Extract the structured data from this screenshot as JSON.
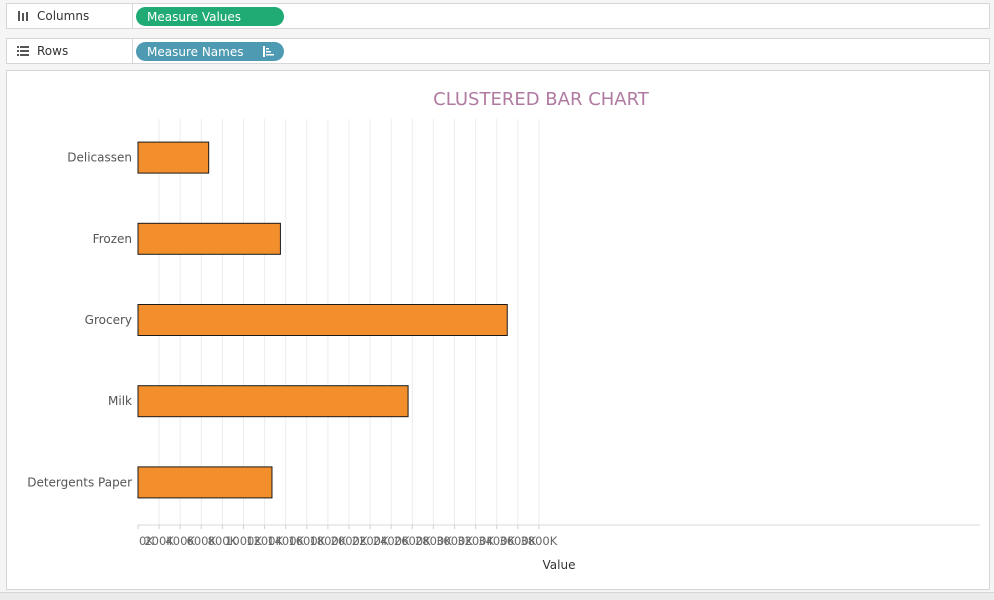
{
  "shelves": {
    "columns": {
      "label": "Columns",
      "pill": "Measure Values"
    },
    "rows": {
      "label": "Rows",
      "pill": "Measure Names"
    }
  },
  "colors": {
    "bar": "#f28e2b",
    "title": "#b07aa1",
    "pill_green": "#1fab73",
    "pill_blue": "#4e9ab3"
  },
  "chart_data": {
    "type": "bar",
    "orientation": "horizontal",
    "title": "CLUSTERED BAR CHART",
    "xlabel": "Value",
    "ylabel": "",
    "categories": [
      "Delicassen",
      "Frozen",
      "Grocery",
      "Milk",
      "Detergents Paper"
    ],
    "values": [
      670000,
      1350000,
      3500000,
      2560000,
      1270000
    ],
    "xlim": [
      0,
      4000000
    ],
    "x_ticks": [
      "0K",
      "200K",
      "400K",
      "600K",
      "800K",
      "1000K",
      "1200K",
      "1400K",
      "1600K",
      "1800K",
      "2000K",
      "2200K",
      "2400K",
      "2600K",
      "2800K",
      "3000K",
      "3200K",
      "3400K",
      "3600K",
      "3800K"
    ],
    "grid": "vertical",
    "legend": "none"
  }
}
